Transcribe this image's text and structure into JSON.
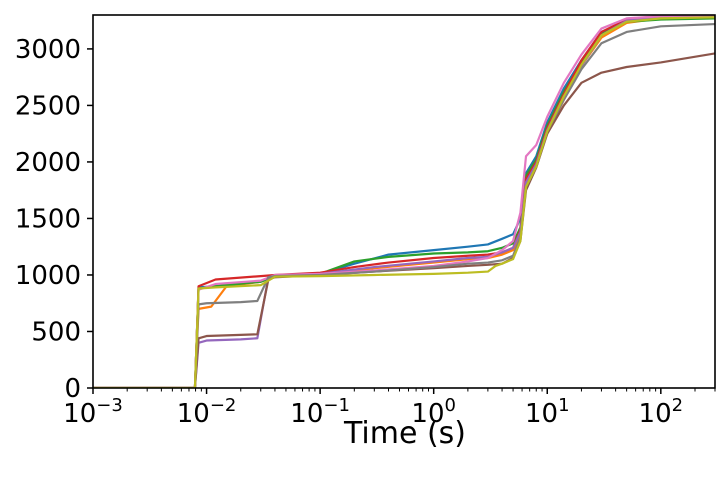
{
  "chart_data": {
    "type": "line",
    "title": "",
    "xlabel": "Time (s)",
    "ylabel": "",
    "x_scale": "log",
    "xlim": [
      0.001,
      300
    ],
    "ylim": [
      0,
      3300
    ],
    "grid": false,
    "x_ticks": [
      {
        "value": 0.001,
        "base": "10",
        "exp": "−3"
      },
      {
        "value": 0.01,
        "base": "10",
        "exp": "−2"
      },
      {
        "value": 0.1,
        "base": "10",
        "exp": "−1"
      },
      {
        "value": 1,
        "base": "10",
        "exp": "0"
      },
      {
        "value": 10,
        "base": "10",
        "exp": "1"
      },
      {
        "value": 100,
        "base": "10",
        "exp": "2"
      }
    ],
    "y_ticks": [
      {
        "value": 0,
        "label": "0"
      },
      {
        "value": 500,
        "label": "500"
      },
      {
        "value": 1000,
        "label": "1000"
      },
      {
        "value": 1500,
        "label": "1500"
      },
      {
        "value": 2000,
        "label": "2000"
      },
      {
        "value": 2500,
        "label": "2500"
      },
      {
        "value": 3000,
        "label": "3000"
      }
    ],
    "series": [
      {
        "color": "#1f77b4",
        "points": [
          [
            0.001,
            0
          ],
          [
            0.0079,
            0
          ],
          [
            0.0085,
            890
          ],
          [
            0.012,
            900
          ],
          [
            0.03,
            940
          ],
          [
            0.04,
            990
          ],
          [
            0.1,
            1010
          ],
          [
            0.2,
            1100
          ],
          [
            0.4,
            1180
          ],
          [
            1,
            1220
          ],
          [
            2,
            1250
          ],
          [
            3,
            1270
          ],
          [
            4,
            1320
          ],
          [
            5,
            1360
          ],
          [
            5.8,
            1500
          ],
          [
            6.5,
            1900
          ],
          [
            8,
            2050
          ],
          [
            10,
            2350
          ],
          [
            14,
            2650
          ],
          [
            20,
            2900
          ],
          [
            30,
            3150
          ],
          [
            50,
            3250
          ],
          [
            100,
            3270
          ],
          [
            300,
            3280
          ]
        ]
      },
      {
        "color": "#ff7f0e",
        "points": [
          [
            0.001,
            0
          ],
          [
            0.0079,
            0
          ],
          [
            0.0085,
            700
          ],
          [
            0.011,
            720
          ],
          [
            0.015,
            900
          ],
          [
            0.03,
            940
          ],
          [
            0.04,
            990
          ],
          [
            0.1,
            1000
          ],
          [
            0.3,
            1060
          ],
          [
            1,
            1110
          ],
          [
            2,
            1140
          ],
          [
            3,
            1150
          ],
          [
            4,
            1180
          ],
          [
            5,
            1220
          ],
          [
            5.8,
            1350
          ],
          [
            6.5,
            1800
          ],
          [
            8,
            2000
          ],
          [
            10,
            2250
          ],
          [
            14,
            2550
          ],
          [
            20,
            2850
          ],
          [
            30,
            3100
          ],
          [
            50,
            3230
          ],
          [
            100,
            3270
          ],
          [
            300,
            3280
          ]
        ]
      },
      {
        "color": "#2ca02c",
        "points": [
          [
            0.001,
            0
          ],
          [
            0.0079,
            0
          ],
          [
            0.0085,
            880
          ],
          [
            0.012,
            900
          ],
          [
            0.03,
            940
          ],
          [
            0.04,
            990
          ],
          [
            0.1,
            1010
          ],
          [
            0.2,
            1120
          ],
          [
            0.4,
            1160
          ],
          [
            1,
            1190
          ],
          [
            2,
            1200
          ],
          [
            3,
            1210
          ],
          [
            4,
            1240
          ],
          [
            5,
            1280
          ],
          [
            5.8,
            1420
          ],
          [
            6.5,
            1880
          ],
          [
            8,
            2020
          ],
          [
            10,
            2320
          ],
          [
            14,
            2620
          ],
          [
            20,
            2880
          ],
          [
            30,
            3130
          ],
          [
            50,
            3240
          ],
          [
            100,
            3260
          ],
          [
            300,
            3270
          ]
        ]
      },
      {
        "color": "#d62728",
        "points": [
          [
            0.001,
            0
          ],
          [
            0.0079,
            0
          ],
          [
            0.0085,
            900
          ],
          [
            0.012,
            960
          ],
          [
            0.03,
            990
          ],
          [
            0.04,
            1000
          ],
          [
            0.1,
            1020
          ],
          [
            0.2,
            1070
          ],
          [
            0.4,
            1110
          ],
          [
            1,
            1150
          ],
          [
            2,
            1170
          ],
          [
            3,
            1180
          ],
          [
            4,
            1200
          ],
          [
            5,
            1240
          ],
          [
            5.8,
            1400
          ],
          [
            6.5,
            1850
          ],
          [
            8,
            2000
          ],
          [
            10,
            2300
          ],
          [
            14,
            2600
          ],
          [
            20,
            2900
          ],
          [
            30,
            3150
          ],
          [
            50,
            3260
          ],
          [
            100,
            3290
          ],
          [
            300,
            3300
          ]
        ]
      },
      {
        "color": "#9467bd",
        "points": [
          [
            0.001,
            0
          ],
          [
            0.0079,
            0
          ],
          [
            0.0085,
            400
          ],
          [
            0.01,
            420
          ],
          [
            0.02,
            430
          ],
          [
            0.028,
            440
          ],
          [
            0.035,
            980
          ],
          [
            0.04,
            990
          ],
          [
            0.1,
            1010
          ],
          [
            0.3,
            1070
          ],
          [
            1,
            1120
          ],
          [
            2,
            1150
          ],
          [
            3,
            1160
          ],
          [
            4,
            1200
          ],
          [
            5,
            1240
          ],
          [
            5.8,
            1380
          ],
          [
            6.5,
            1820
          ],
          [
            8,
            1980
          ],
          [
            10,
            2280
          ],
          [
            14,
            2580
          ],
          [
            20,
            2850
          ],
          [
            30,
            3120
          ],
          [
            50,
            3250
          ],
          [
            100,
            3280
          ],
          [
            300,
            3290
          ]
        ]
      },
      {
        "color": "#8c564b",
        "points": [
          [
            0.001,
            0
          ],
          [
            0.0079,
            0
          ],
          [
            0.0085,
            440
          ],
          [
            0.01,
            460
          ],
          [
            0.02,
            470
          ],
          [
            0.028,
            475
          ],
          [
            0.035,
            960
          ],
          [
            0.04,
            980
          ],
          [
            0.1,
            1000
          ],
          [
            0.3,
            1030
          ],
          [
            1,
            1060
          ],
          [
            2,
            1080
          ],
          [
            3,
            1090
          ],
          [
            4,
            1100
          ],
          [
            5,
            1150
          ],
          [
            5.8,
            1300
          ],
          [
            6.5,
            1750
          ],
          [
            8,
            1950
          ],
          [
            10,
            2250
          ],
          [
            14,
            2500
          ],
          [
            20,
            2700
          ],
          [
            30,
            2790
          ],
          [
            50,
            2840
          ],
          [
            100,
            2880
          ],
          [
            300,
            2960
          ]
        ]
      },
      {
        "color": "#e377c2",
        "points": [
          [
            0.001,
            0
          ],
          [
            0.0079,
            0
          ],
          [
            0.0085,
            870
          ],
          [
            0.012,
            920
          ],
          [
            0.03,
            950
          ],
          [
            0.04,
            1000
          ],
          [
            0.1,
            1010
          ],
          [
            0.3,
            1040
          ],
          [
            1,
            1080
          ],
          [
            2,
            1120
          ],
          [
            3,
            1150
          ],
          [
            4,
            1220
          ],
          [
            5,
            1300
          ],
          [
            5.8,
            1550
          ],
          [
            6.5,
            2050
          ],
          [
            8,
            2150
          ],
          [
            10,
            2400
          ],
          [
            14,
            2700
          ],
          [
            20,
            2950
          ],
          [
            30,
            3180
          ],
          [
            50,
            3270
          ],
          [
            100,
            3290
          ],
          [
            300,
            3300
          ]
        ]
      },
      {
        "color": "#7f7f7f",
        "points": [
          [
            0.001,
            0
          ],
          [
            0.0079,
            0
          ],
          [
            0.0085,
            740
          ],
          [
            0.01,
            750
          ],
          [
            0.02,
            760
          ],
          [
            0.028,
            770
          ],
          [
            0.035,
            980
          ],
          [
            0.04,
            990
          ],
          [
            0.1,
            1000
          ],
          [
            0.3,
            1030
          ],
          [
            1,
            1070
          ],
          [
            2,
            1100
          ],
          [
            3,
            1110
          ],
          [
            4,
            1130
          ],
          [
            5,
            1170
          ],
          [
            5.8,
            1330
          ],
          [
            6.5,
            1780
          ],
          [
            8,
            1960
          ],
          [
            10,
            2270
          ],
          [
            14,
            2550
          ],
          [
            20,
            2820
          ],
          [
            30,
            3050
          ],
          [
            50,
            3150
          ],
          [
            100,
            3200
          ],
          [
            300,
            3220
          ]
        ]
      },
      {
        "color": "#bcbd22",
        "points": [
          [
            0.001,
            0
          ],
          [
            0.0079,
            0
          ],
          [
            0.0085,
            880
          ],
          [
            0.012,
            890
          ],
          [
            0.03,
            910
          ],
          [
            0.04,
            985
          ],
          [
            0.1,
            990
          ],
          [
            0.3,
            1000
          ],
          [
            1,
            1010
          ],
          [
            2,
            1020
          ],
          [
            3,
            1030
          ],
          [
            3.5,
            1080
          ],
          [
            4,
            1100
          ],
          [
            5,
            1140
          ],
          [
            5.8,
            1300
          ],
          [
            6.5,
            1780
          ],
          [
            8,
            1960
          ],
          [
            10,
            2270
          ],
          [
            14,
            2580
          ],
          [
            20,
            2860
          ],
          [
            30,
            3120
          ],
          [
            50,
            3240
          ],
          [
            100,
            3270
          ],
          [
            300,
            3280
          ]
        ]
      }
    ]
  }
}
